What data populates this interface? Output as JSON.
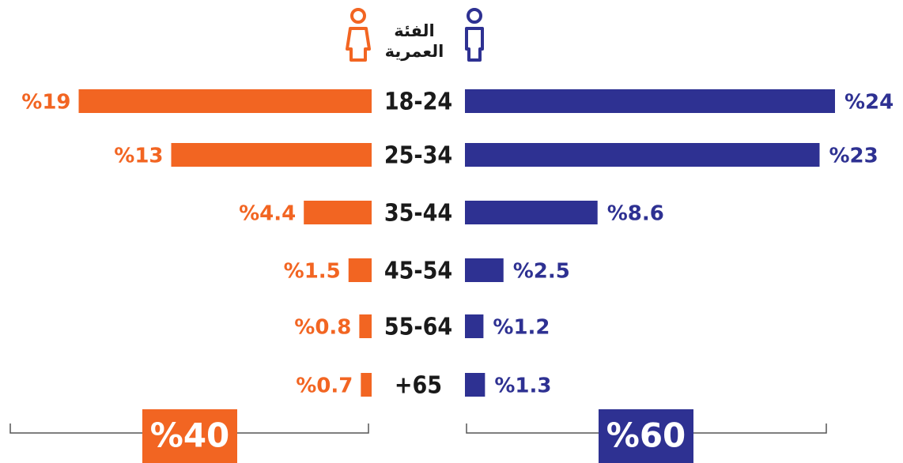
{
  "chart_data": {
    "type": "butterfly",
    "title": "الفئة العمرية",
    "categories": [
      "18-24",
      "25-34",
      "35-44",
      "45-54",
      "55-64",
      "+65"
    ],
    "series": [
      {
        "color": "#f26522",
        "side": "left",
        "values": [
          19,
          13,
          4.4,
          1.5,
          0.8,
          0.7
        ],
        "value_labels": [
          "%19",
          "%13",
          "%4.4",
          "%1.5",
          "%0.8",
          "%0.7"
        ],
        "total": 40,
        "total_label": "%40"
      },
      {
        "color": "#2e3192",
        "side": "right",
        "values": [
          24,
          23,
          8.6,
          2.5,
          1.2,
          1.3
        ],
        "value_labels": [
          "%24",
          "%23",
          "%8.6",
          "%2.5",
          "%1.2",
          "%1.3"
        ],
        "total": 60,
        "total_label": "%60"
      }
    ]
  }
}
